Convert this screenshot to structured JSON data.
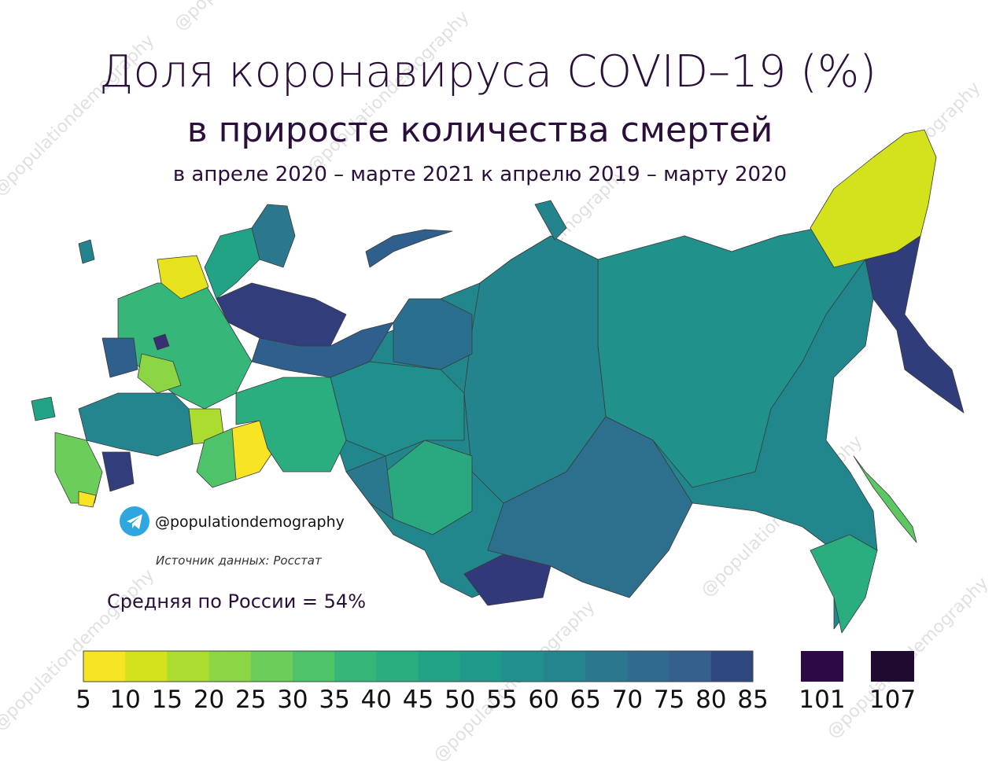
{
  "header": {
    "title": "Доля коронавируса COVID–19 (%)",
    "subtitle": "в приросте количества смертей",
    "period": "в апреле 2020 – марте 2021 к апрелю 2019 – марту 2020"
  },
  "handle": "@populationdemography",
  "source": "Источник данных: Росстат",
  "average": "Средняя по России = 54%",
  "watermark": "@populationdemography",
  "legend": {
    "bins": [
      5,
      10,
      15,
      20,
      25,
      30,
      35,
      40,
      45,
      50,
      55,
      60,
      65,
      70,
      75,
      80,
      85
    ],
    "colors": [
      "#f7e425",
      "#d3e21c",
      "#addc30",
      "#8cd646",
      "#6ccd5a",
      "#4fc36a",
      "#36b779",
      "#2aae80",
      "#22a385",
      "#1f9a8a",
      "#21908d",
      "#25858e",
      "#2b788e",
      "#306b8e",
      "#355f8d",
      "#2f477f",
      "#323a73"
    ],
    "extra": [
      {
        "value": 101,
        "color": "#2d0a46"
      },
      {
        "value": 107,
        "color": "#1f0a30"
      }
    ]
  }
}
